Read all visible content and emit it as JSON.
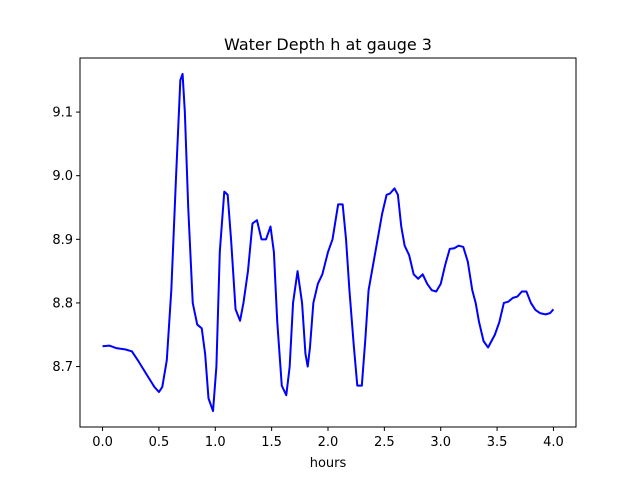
{
  "chart_data": {
    "type": "line",
    "title": "Water Depth h at gauge 3",
    "xlabel": "hours",
    "ylabel": "",
    "xlim": [
      -0.2,
      4.2
    ],
    "ylim": [
      8.605,
      9.185
    ],
    "xticks": [
      0.0,
      0.5,
      1.0,
      1.5,
      2.0,
      2.5,
      3.0,
      3.5,
      4.0
    ],
    "xtick_labels": [
      "0.0",
      "0.5",
      "1.0",
      "1.5",
      "2.0",
      "2.5",
      "3.0",
      "3.5",
      "4.0"
    ],
    "yticks": [
      8.7,
      8.8,
      8.9,
      9.0,
      9.1
    ],
    "ytick_labels": [
      "8.7",
      "8.8",
      "8.9",
      "9.0",
      "9.1"
    ],
    "grid": false,
    "series": [
      {
        "color": "#0000ff",
        "x": [
          0.0,
          0.06,
          0.12,
          0.2,
          0.26,
          0.32,
          0.4,
          0.46,
          0.5,
          0.53,
          0.57,
          0.61,
          0.65,
          0.69,
          0.71,
          0.73,
          0.76,
          0.8,
          0.84,
          0.88,
          0.91,
          0.94,
          0.98,
          1.01,
          1.04,
          1.08,
          1.11,
          1.14,
          1.18,
          1.22,
          1.25,
          1.29,
          1.33,
          1.37,
          1.41,
          1.45,
          1.49,
          1.52,
          1.55,
          1.59,
          1.63,
          1.66,
          1.69,
          1.73,
          1.77,
          1.8,
          1.82,
          1.84,
          1.87,
          1.91,
          1.95,
          2.0,
          2.04,
          2.09,
          2.13,
          2.16,
          2.19,
          2.23,
          2.26,
          2.3,
          2.33,
          2.36,
          2.4,
          2.44,
          2.48,
          2.52,
          2.55,
          2.59,
          2.62,
          2.65,
          2.68,
          2.72,
          2.76,
          2.8,
          2.84,
          2.88,
          2.92,
          2.96,
          3.0,
          3.04,
          3.08,
          3.12,
          3.16,
          3.2,
          3.24,
          3.28,
          3.31,
          3.34,
          3.38,
          3.42,
          3.45,
          3.48,
          3.52,
          3.56,
          3.6,
          3.64,
          3.68,
          3.72,
          3.76,
          3.8,
          3.84,
          3.88,
          3.93,
          3.97,
          4.0
        ],
        "y": [
          8.732,
          8.733,
          8.729,
          8.727,
          8.724,
          8.708,
          8.685,
          8.668,
          8.66,
          8.668,
          8.71,
          8.82,
          8.99,
          9.15,
          9.16,
          9.1,
          8.95,
          8.8,
          8.766,
          8.76,
          8.72,
          8.65,
          8.63,
          8.7,
          8.88,
          8.975,
          8.97,
          8.9,
          8.79,
          8.772,
          8.8,
          8.85,
          8.925,
          8.93,
          8.9,
          8.9,
          8.92,
          8.88,
          8.77,
          8.67,
          8.655,
          8.7,
          8.8,
          8.85,
          8.8,
          8.72,
          8.7,
          8.73,
          8.8,
          8.83,
          8.845,
          8.88,
          8.9,
          8.955,
          8.955,
          8.9,
          8.82,
          8.73,
          8.67,
          8.67,
          8.74,
          8.82,
          8.86,
          8.9,
          8.94,
          8.97,
          8.972,
          8.98,
          8.97,
          8.92,
          8.89,
          8.875,
          8.845,
          8.838,
          8.845,
          8.83,
          8.82,
          8.818,
          8.83,
          8.86,
          8.885,
          8.886,
          8.89,
          8.888,
          8.865,
          8.82,
          8.8,
          8.77,
          8.74,
          8.73,
          8.74,
          8.75,
          8.77,
          8.8,
          8.802,
          8.808,
          8.81,
          8.818,
          8.818,
          8.8,
          8.789,
          8.784,
          8.782,
          8.784,
          8.79
        ]
      }
    ]
  }
}
